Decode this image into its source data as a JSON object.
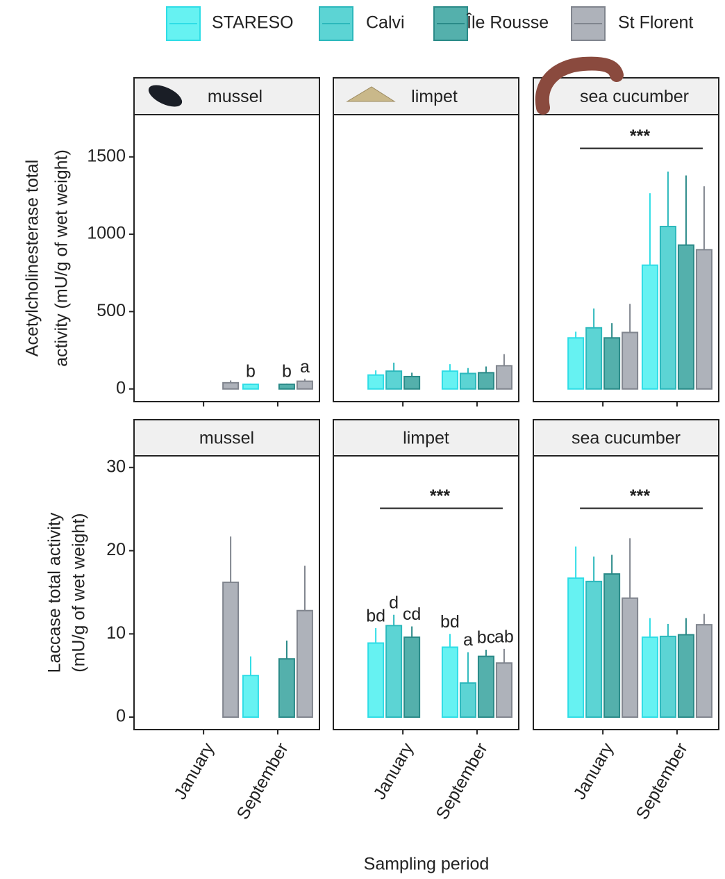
{
  "chart_data": [
    {
      "type": "bar",
      "title": "mussel",
      "ylabel": [
        "Acetylcholinesterase total",
        "activity (mU/g of wet weight)"
      ],
      "ylim": [
        -82,
        1773
      ],
      "yticks": [
        0,
        500,
        1000,
        1500
      ],
      "series": [
        {
          "name": "STARESO",
          "color": "#66f2f2",
          "edge": "#2fdde6",
          "values": [
            null,
            30
          ],
          "errors": [
            null,
            5
          ],
          "letters": [
            null,
            "b"
          ]
        },
        {
          "name": "Calvi",
          "color": "#5cd4d4",
          "edge": "#2cb8bc",
          "values": [
            null,
            null
          ],
          "errors": [
            null,
            null
          ]
        },
        {
          "name": "Île Rousse",
          "color": "#54b0ac",
          "edge": "#2a8a88",
          "values": [
            null,
            30
          ],
          "errors": [
            null,
            5
          ],
          "letters": [
            null,
            "b"
          ]
        },
        {
          "name": "St Florent",
          "color": "#aeb2ba",
          "edge": "#80858e",
          "values": [
            40,
            50
          ],
          "errors": [
            15,
            15
          ],
          "letters": [
            null,
            "a"
          ]
        }
      ]
    },
    {
      "type": "bar",
      "title": "limpet",
      "series": [
        {
          "values": [
            90,
            115
          ],
          "errors": [
            30,
            45
          ]
        },
        {
          "values": [
            115,
            100
          ],
          "errors": [
            55,
            35
          ]
        },
        {
          "values": [
            80,
            105
          ],
          "errors": [
            25,
            40
          ]
        },
        {
          "values": [
            null,
            150
          ],
          "errors": [
            null,
            75
          ]
        }
      ]
    },
    {
      "type": "bar",
      "title": "sea cucumber",
      "significance": {
        "label": "***",
        "value": 1555
      },
      "series": [
        {
          "values": [
            330,
            800
          ],
          "errors": [
            40,
            465
          ]
        },
        {
          "values": [
            395,
            1050
          ],
          "errors": [
            125,
            355
          ]
        },
        {
          "values": [
            330,
            930
          ],
          "errors": [
            95,
            450
          ]
        },
        {
          "values": [
            365,
            900
          ],
          "errors": [
            185,
            410
          ]
        }
      ]
    },
    {
      "type": "bar",
      "title": "mussel",
      "ylabel": [
        "Laccase total activity",
        "(mU/g of wet weight)"
      ],
      "ylim": [
        -1.5,
        31.4
      ],
      "yticks": [
        0,
        10,
        20,
        30
      ],
      "categories": [
        "January",
        "September"
      ],
      "series": [
        {
          "values": [
            null,
            5
          ],
          "errors": [
            null,
            2.3
          ]
        },
        {
          "values": [
            null,
            null
          ],
          "errors": [
            null,
            null
          ]
        },
        {
          "values": [
            null,
            7
          ],
          "errors": [
            null,
            2.2
          ]
        },
        {
          "values": [
            16.2,
            12.8
          ],
          "errors": [
            5.5,
            5.4
          ]
        }
      ]
    },
    {
      "type": "bar",
      "title": "limpet",
      "categories": [
        "January",
        "September"
      ],
      "xlabel": "Sampling period",
      "significance": {
        "label": "***",
        "value": 25.1
      },
      "series": [
        {
          "values": [
            8.9,
            8.4
          ],
          "errors": [
            1.8,
            1.6
          ],
          "letters": [
            "bd",
            "bd"
          ]
        },
        {
          "values": [
            11,
            4.1
          ],
          "errors": [
            1.3,
            3.7
          ],
          "letters": [
            "d",
            "a"
          ]
        },
        {
          "values": [
            9.6,
            7.3
          ],
          "errors": [
            1.3,
            0.8
          ],
          "letters": [
            "cd",
            "bc"
          ]
        },
        {
          "values": [
            null,
            6.5
          ],
          "errors": [
            null,
            1.7
          ],
          "letters": [
            null,
            "ab"
          ]
        }
      ]
    },
    {
      "type": "bar",
      "title": "sea cucumber",
      "categories": [
        "January",
        "September"
      ],
      "significance": {
        "label": "***",
        "value": 25.1
      },
      "series": [
        {
          "values": [
            16.7,
            9.6
          ],
          "errors": [
            3.8,
            2.3
          ]
        },
        {
          "values": [
            16.3,
            9.7
          ],
          "errors": [
            3,
            1.5
          ]
        },
        {
          "values": [
            17.2,
            9.9
          ],
          "errors": [
            2.3,
            2
          ]
        },
        {
          "values": [
            14.3,
            11.1
          ],
          "errors": [
            7.2,
            1.3
          ]
        }
      ]
    }
  ]
}
